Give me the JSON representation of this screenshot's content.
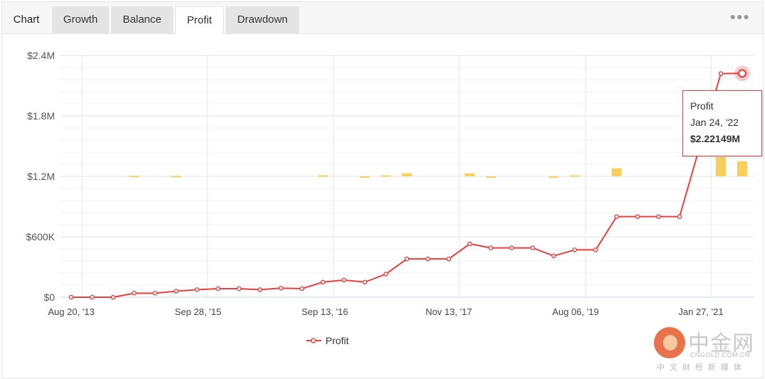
{
  "tabs": {
    "title": "Chart",
    "items": [
      "Growth",
      "Balance",
      "Profit",
      "Drawdown"
    ],
    "active": "Profit",
    "menu_icon": "more-dots-icon"
  },
  "chart_data": {
    "type": "line",
    "title": "",
    "xlabel": "",
    "ylabel": "",
    "ylim": [
      0,
      2400000
    ],
    "y_ticks": [
      "$0",
      "$600K",
      "$1.2M",
      "$1.8M",
      "$2.4M"
    ],
    "y_tick_values": [
      0,
      600000,
      1200000,
      1800000,
      2400000
    ],
    "x_ticks": [
      "Aug 20, '13",
      "Sep 28, '15",
      "Sep 13, '16",
      "Nov 13, '17",
      "Aug 06, '19",
      "Jan 27, '21"
    ],
    "grid": true,
    "legend_placement": "bottom-center",
    "series": [
      {
        "name": "Profit",
        "color": "#e8403f",
        "values": [
          0,
          0,
          0,
          40000,
          40000,
          60000,
          75000,
          85000,
          85000,
          75000,
          90000,
          85000,
          150000,
          170000,
          150000,
          230000,
          380000,
          380000,
          380000,
          530000,
          490000,
          490000,
          490000,
          410000,
          470000,
          470000,
          800000,
          800000,
          800000,
          800000,
          2220000,
          2221490
        ]
      }
    ],
    "bars": {
      "color": "#f7cf5a",
      "baseline": 1200000,
      "values": [
        0,
        0,
        0,
        5000,
        0,
        5000,
        0,
        0,
        0,
        0,
        0,
        0,
        10000,
        0,
        -5000,
        10000,
        30000,
        0,
        0,
        30000,
        -5000,
        0,
        0,
        -15000,
        10000,
        0,
        80000,
        0,
        0,
        0,
        190000,
        150000
      ]
    }
  },
  "tooltip": {
    "series": "Profit",
    "date": "Jan 24, '22",
    "value": "$2.22149M"
  },
  "watermark": {
    "title": "中金网",
    "url": "CNGOLD.COM.CN",
    "sub": "中文财经新媒体"
  }
}
